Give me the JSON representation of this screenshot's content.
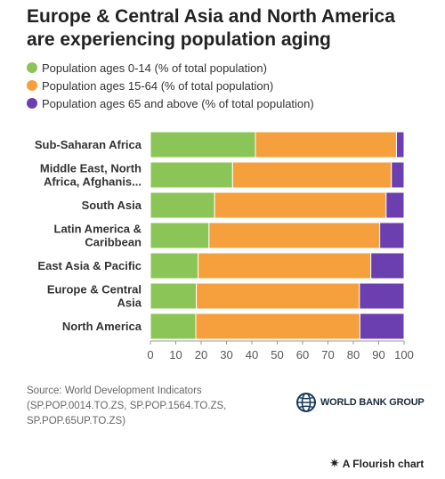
{
  "header": {
    "title": "Europe & Central Asia and North America are experiencing population aging"
  },
  "colors": {
    "ages_0_14": "#8cc557",
    "ages_15_64": "#f5a03c",
    "ages_65_up": "#6c3fb0"
  },
  "chart_data": {
    "type": "bar",
    "orientation": "horizontal",
    "stacked": true,
    "title": "Europe & Central Asia and North America are experiencing population aging",
    "xlabel": "",
    "ylabel": "",
    "xlim": [
      0,
      100
    ],
    "xticks": [
      "0",
      "10",
      "20",
      "30",
      "40",
      "50",
      "60",
      "70",
      "80",
      "90",
      "100"
    ],
    "legend_position": "top-left",
    "grid": false,
    "categories": [
      [
        "Sub-Saharan Africa"
      ],
      [
        "Middle East, North",
        "Africa, Afghanis..."
      ],
      [
        "South Asia"
      ],
      [
        "Latin America &",
        "Caribbean"
      ],
      [
        "East Asia & Pacific"
      ],
      [
        "Europe & Central",
        "Asia"
      ],
      [
        "North America"
      ]
    ],
    "series": [
      {
        "name": "Population ages 0-14 (% of total population)",
        "values": [
          41.4,
          32.4,
          25.3,
          23.1,
          18.8,
          18.1,
          17.9
        ]
      },
      {
        "name": "Population ages 15-64 (% of total population)",
        "values": [
          55.6,
          62.6,
          67.6,
          67.3,
          68.1,
          64.3,
          64.7
        ]
      },
      {
        "name": "Population ages 65 and above (% of total population)",
        "values": [
          3.0,
          5.0,
          7.1,
          9.6,
          13.1,
          17.6,
          17.4
        ]
      }
    ]
  },
  "footer": {
    "source_lines": [
      "Source: World Development Indicators",
      "(SP.POP.0014.TO.ZS, SP.POP.1564.TO.ZS,",
      "SP.POP.65UP.TO.ZS)"
    ],
    "logo_text": "WORLD BANK GROUP",
    "logo_icon": "globe-icon",
    "flourish_icon": "flourish-asterisk-icon",
    "flourish_text": "A Flourish chart"
  }
}
